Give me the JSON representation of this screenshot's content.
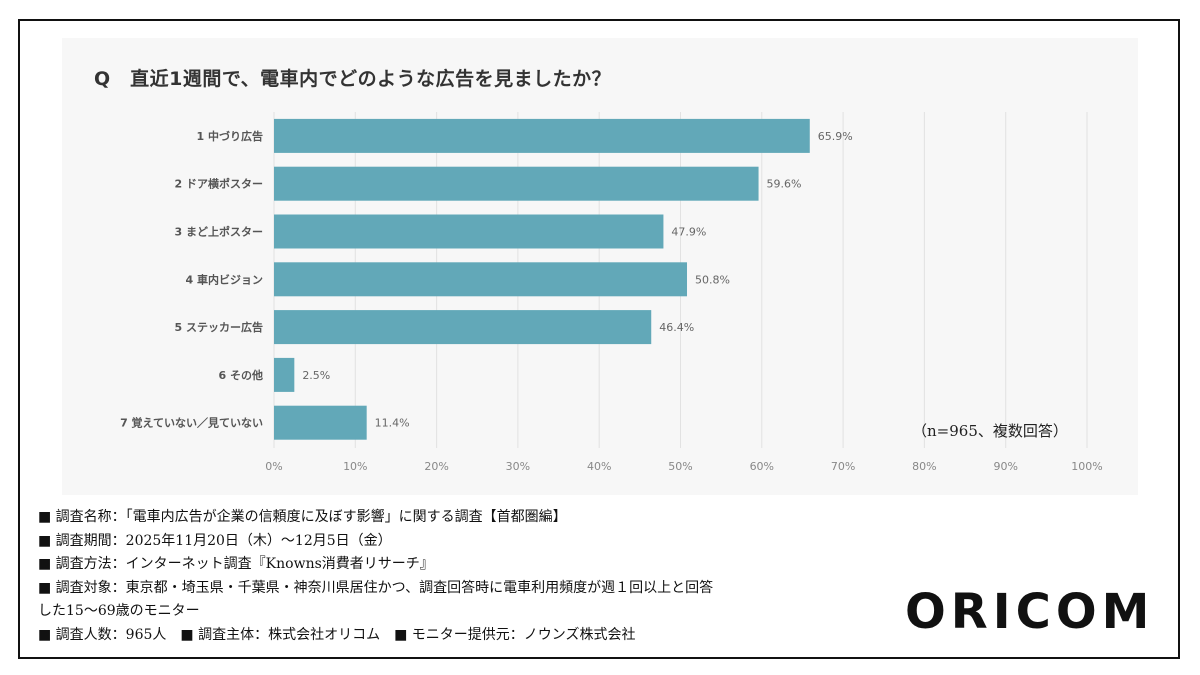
{
  "chart_data": {
    "type": "bar",
    "orientation": "horizontal",
    "title": "Q　直近1週間で、電車内でどのような広告を見ましたか？",
    "categories": [
      "1 中づり広告",
      "2 ドア横ポスター",
      "3 まど上ポスター",
      "4 車内ビジョン",
      "5 ステッカー広告",
      "6 その他",
      "7 覚えていない／見ていない"
    ],
    "values": [
      65.9,
      59.6,
      47.9,
      50.8,
      46.4,
      2.5,
      11.4
    ],
    "value_labels": [
      "65.9%",
      "59.6%",
      "47.9%",
      "50.8%",
      "46.4%",
      "2.5%",
      "11.4%"
    ],
    "xlim": [
      0,
      100
    ],
    "xticks": [
      "0%",
      "10%",
      "20%",
      "30%",
      "40%",
      "50%",
      "60%",
      "70%",
      "80%",
      "90%",
      "100%"
    ],
    "grid": true,
    "bar_color": "#62a8b8",
    "annotation": "（n=965、複数回答）"
  },
  "footer": {
    "lines": [
      "■ 調査名称：「電車内広告が企業の信頼度に及ぼす影響」に関する調査【首都圏編】",
      "■ 調査期間：2025年11月20日（木）～12月5日（金）",
      "■ 調査方法：インターネット調査『Knowns消費者リサーチ』",
      "■ 調査対象：東京都・埼玉県・千葉県・神奈川県居住かつ、調査回答時に電車利用頻度が週１回以上と回答",
      "した15～69歳のモニター",
      "■ 調査人数：965人　■ 調査主体：株式会社オリコム　■ モニター提供元：ノウンズ株式会社"
    ]
  },
  "logo": "ORICOM"
}
